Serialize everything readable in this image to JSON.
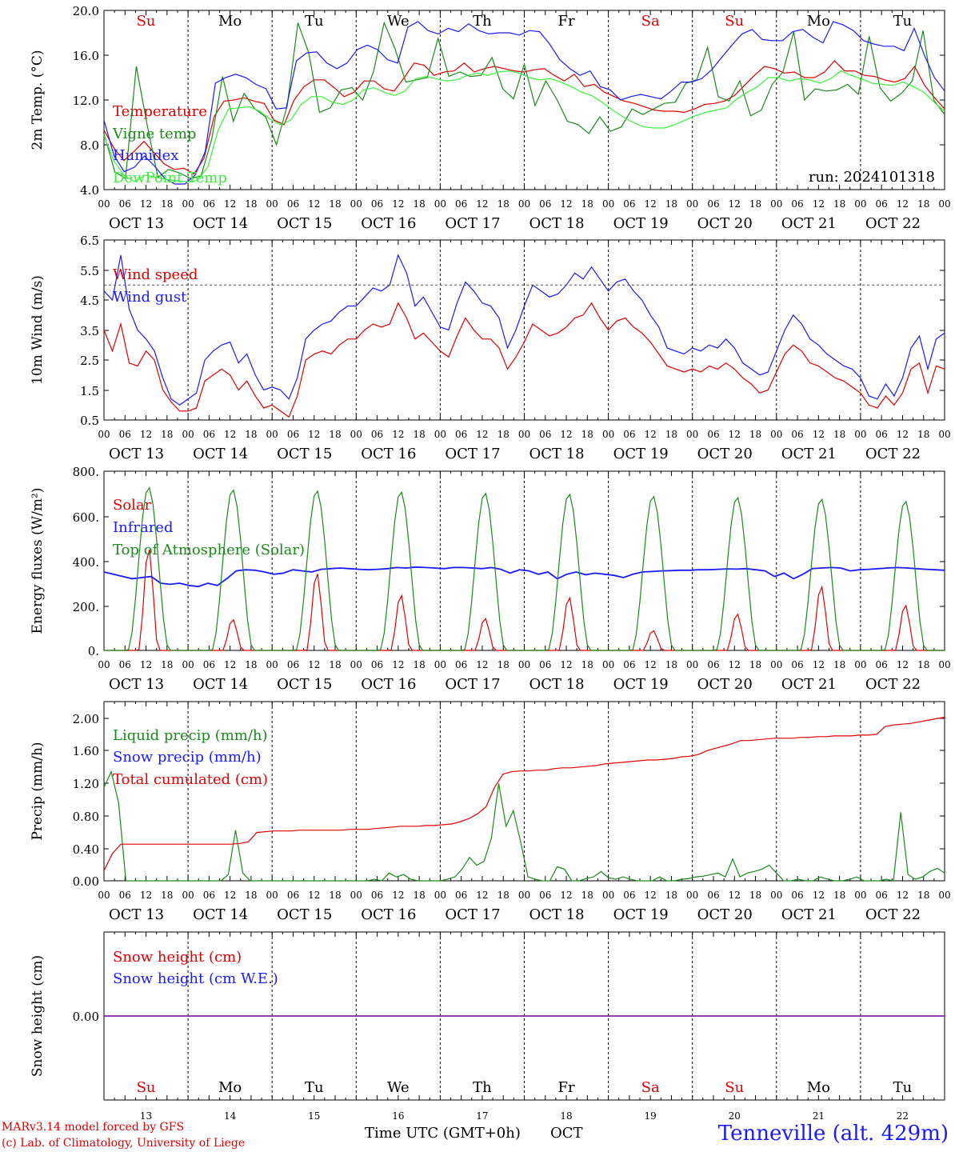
{
  "chart_data": [
    {
      "type": "line",
      "ylabel": "2m Temp. (°C)",
      "ylim": [
        4.0,
        20.0
      ],
      "yticks": [
        "20.0",
        "16.0",
        "12.0",
        "8.0",
        "4.0"
      ],
      "annotation": "run: 2024101318",
      "weekdays": [
        "Su",
        "Mo",
        "Tu",
        "We",
        "Th",
        "Fr",
        "Sa",
        "Su",
        "Mo",
        "Tu"
      ],
      "series": [
        {
          "name": "Temperature",
          "color": "#e00000",
          "values": [
            9.3,
            7.7,
            6.6,
            7.4,
            8.3,
            7.3,
            6.3,
            5.8,
            5.9,
            5.4,
            6.8,
            10.5,
            11.9,
            12.0,
            12.2,
            11.9,
            11.7,
            10.2,
            9.8,
            12.0,
            13.2,
            13.8,
            13.8,
            13.1,
            12.3,
            12.7,
            13.7,
            13.7,
            13.0,
            12.8,
            14.0,
            15.3,
            15.1,
            14.2,
            14.5,
            14.6,
            15.3,
            14.5,
            14.8,
            15.0,
            14.8,
            14.6,
            14.5,
            14.7,
            14.8,
            14.2,
            13.7,
            14.3,
            13.2,
            13.4,
            12.7,
            12.3,
            11.9,
            11.7,
            11.4,
            11.1,
            11.0,
            11.0,
            10.9,
            11.2,
            11.6,
            11.7,
            11.9,
            12.4,
            13.3,
            14.2,
            15.0,
            14.8,
            14.4,
            14.5,
            14.0,
            14.0,
            14.5,
            15.5,
            14.6,
            14.6,
            14.2,
            14.1,
            13.8,
            13.6,
            13.9,
            15.0,
            13.3,
            12.2,
            11.2
          ]
        },
        {
          "name": "Vigne temp",
          "color": "#1a8a1a",
          "values": [
            9.0,
            5.6,
            5.0,
            15.0,
            9.8,
            5.1,
            5.8,
            5.5,
            5.0,
            5.2,
            8.5,
            14.1,
            10.1,
            12.6,
            11.2,
            10.5,
            8.0,
            11.5,
            18.9,
            16.2,
            10.9,
            11.3,
            12.9,
            13.1,
            12.0,
            14.5,
            18.9,
            16.6,
            13.6,
            13.8,
            14.0,
            17.5,
            14.1,
            14.5,
            14.1,
            14.2,
            15.8,
            13.0,
            12.1,
            15.2,
            11.5,
            13.7,
            12.1,
            10.1,
            9.8,
            9.0,
            10.5,
            9.2,
            9.6,
            11.2,
            10.7,
            11.2,
            11.7,
            11.8,
            13.5,
            13.8,
            16.7,
            12.3,
            11.9,
            13.7,
            10.6,
            11.1,
            13.4,
            14.5,
            18.1,
            12.0,
            13.0,
            12.8,
            12.9,
            13.4,
            12.5,
            17.7,
            13.1,
            11.9,
            12.6,
            13.7,
            18.2,
            12.0,
            10.7
          ]
        },
        {
          "name": "Humidex",
          "color": "#1a1aff",
          "values": [
            10.2,
            7.0,
            5.6,
            6.0,
            7.0,
            6.1,
            5.0,
            4.5,
            4.5,
            5.3,
            7.4,
            13.5,
            14.0,
            14.3,
            14.0,
            13.4,
            13.0,
            11.2,
            11.3,
            15.5,
            16.2,
            16.3,
            15.3,
            14.8,
            15.3,
            16.5,
            16.9,
            16.5,
            15.6,
            15.3,
            18.5,
            19.0,
            18.2,
            17.9,
            18.4,
            18.1,
            18.8,
            18.2,
            17.9,
            18.0,
            18.0,
            17.8,
            18.2,
            18.1,
            17.0,
            15.6,
            14.8,
            14.2,
            14.6,
            13.2,
            12.9,
            12.0,
            12.3,
            12.5,
            12.3,
            12.1,
            12.8,
            13.6,
            13.6,
            13.9,
            14.7,
            15.8,
            16.9,
            17.9,
            18.3,
            17.4,
            17.3,
            17.3,
            18.1,
            18.3,
            17.6,
            17.1,
            19.0,
            18.7,
            18.2,
            17.3,
            17.0,
            16.8,
            16.8,
            16.4,
            18.4,
            16.0,
            14.0,
            12.8
          ]
        },
        {
          "name": "DewPoint Temp",
          "color": "#3cf03c",
          "values": [
            8.8,
            6.5,
            5.2,
            4.7,
            5.3,
            5.1,
            4.9,
            4.8,
            4.7,
            4.8,
            6.0,
            9.3,
            11.2,
            11.3,
            11.4,
            11.0,
            10.3,
            9.8,
            10.2,
            11.6,
            12.3,
            12.3,
            11.8,
            11.6,
            12.0,
            12.9,
            13.1,
            12.7,
            12.4,
            12.8,
            13.9,
            14.1,
            13.9,
            13.7,
            13.8,
            14.2,
            14.4,
            14.2,
            14.5,
            14.6,
            14.4,
            14.0,
            13.8,
            13.9,
            13.6,
            13.2,
            12.7,
            12.4,
            11.8,
            11.1,
            10.5,
            10.0,
            9.6,
            9.5,
            9.5,
            9.8,
            10.2,
            10.6,
            10.9,
            11.1,
            11.3,
            12.1,
            12.7,
            13.2,
            14.0,
            14.0,
            13.7,
            13.9,
            13.8,
            13.5,
            13.9,
            14.6,
            14.2,
            13.9,
            13.5,
            13.4,
            13.3,
            13.6,
            13.2,
            12.7,
            11.8,
            11.0
          ]
        }
      ]
    },
    {
      "type": "line",
      "ylabel": "10m Wind (m/s)",
      "ylim": [
        0.5,
        6.5
      ],
      "yticks": [
        "6.5",
        "5.5",
        "4.5",
        "3.5",
        "2.5",
        "1.5",
        "0.5"
      ],
      "series": [
        {
          "name": "Wind speed",
          "color": "#e00000",
          "values": [
            3.5,
            2.8,
            3.7,
            2.4,
            2.3,
            2.8,
            2.5,
            1.5,
            1.1,
            0.8,
            0.8,
            0.9,
            1.8,
            2.0,
            2.2,
            2.0,
            1.5,
            1.8,
            1.3,
            0.9,
            1.0,
            0.8,
            0.6,
            1.3,
            2.5,
            2.7,
            2.8,
            2.7,
            3.0,
            3.2,
            3.2,
            3.5,
            3.7,
            3.6,
            3.7,
            4.4,
            3.9,
            3.2,
            3.4,
            3.1,
            2.8,
            2.6,
            3.3,
            3.9,
            3.5,
            3.2,
            3.2,
            2.9,
            2.2,
            2.6,
            3.1,
            3.7,
            3.5,
            3.3,
            3.4,
            3.6,
            3.9,
            4.0,
            4.4,
            3.9,
            3.5,
            3.8,
            3.9,
            3.6,
            3.4,
            3.1,
            2.7,
            2.3,
            2.2,
            2.1,
            2.2,
            2.1,
            2.3,
            2.2,
            2.4,
            2.2,
            1.9,
            1.7,
            1.4,
            1.5,
            2.1,
            2.7,
            3.0,
            2.8,
            2.4,
            2.3,
            2.1,
            1.9,
            1.8,
            1.6,
            1.4,
            1.0,
            0.9,
            1.3,
            1.0,
            1.4,
            2.2,
            2.4,
            1.4,
            2.3,
            2.2
          ]
        },
        {
          "name": "Wind gust",
          "color": "#1a1aff",
          "values": [
            4.8,
            4.5,
            6.0,
            4.2,
            3.5,
            3.2,
            2.8,
            1.9,
            1.2,
            1.0,
            1.2,
            1.4,
            2.5,
            2.8,
            3.0,
            3.1,
            2.4,
            2.7,
            2.0,
            1.5,
            1.6,
            1.5,
            1.2,
            1.9,
            3.2,
            3.5,
            3.7,
            3.8,
            4.1,
            4.3,
            4.3,
            4.6,
            4.9,
            4.8,
            5.0,
            6.0,
            5.4,
            4.3,
            4.6,
            4.1,
            3.6,
            3.5,
            4.4,
            5.1,
            4.8,
            4.4,
            4.3,
            3.9,
            2.9,
            3.5,
            4.3,
            5.0,
            4.8,
            4.6,
            4.7,
            5.0,
            5.4,
            5.2,
            5.6,
            5.2,
            4.8,
            5.1,
            5.2,
            4.8,
            4.5,
            4.0,
            3.6,
            2.9,
            2.8,
            2.7,
            2.9,
            2.8,
            3.0,
            2.9,
            3.2,
            2.9,
            2.4,
            2.2,
            2.0,
            2.1,
            2.8,
            3.5,
            4.0,
            3.7,
            3.2,
            3.0,
            2.7,
            2.5,
            2.3,
            2.2,
            1.9,
            1.3,
            1.2,
            1.7,
            1.3,
            1.9,
            2.9,
            3.3,
            2.2,
            3.2,
            3.4
          ]
        }
      ],
      "reference_line": 5.0
    },
    {
      "type": "line",
      "ylabel": "Energy fluxes (W/m²)",
      "ylim": [
        0,
        800
      ],
      "yticks": [
        "800.",
        "600.",
        "400.",
        "200.",
        "0."
      ],
      "series": [
        {
          "name": "Solar",
          "color": "#e00000",
          "peaks": [
            460,
            140,
            350,
            250,
            145,
            240,
            90,
            165,
            290,
            205
          ]
        },
        {
          "name": "Infrared",
          "color": "#1a1aff",
          "values": [
            350,
            340,
            330,
            320,
            325,
            330,
            300,
            295,
            300,
            290,
            285,
            300,
            290,
            320,
            355,
            360,
            358,
            350,
            340,
            345,
            360,
            355,
            350,
            362,
            365,
            368,
            365,
            362,
            360,
            362,
            365,
            370,
            368,
            372,
            370,
            368,
            365,
            370,
            370,
            368,
            365,
            370,
            362,
            345,
            360,
            355,
            340,
            350,
            320,
            340,
            350,
            338,
            345,
            340,
            335,
            325,
            340,
            350,
            352,
            355,
            356,
            358,
            358,
            360,
            360,
            362,
            364,
            363,
            365,
            360,
            355,
            330,
            345,
            320,
            340,
            365,
            368,
            370,
            368,
            355,
            360,
            362,
            365,
            368,
            370,
            368,
            365,
            362,
            360,
            358
          ]
        },
        {
          "name": "Top of Atmosphere (Solar)",
          "color": "#1a8a1a",
          "peaks": [
            730,
            720,
            715,
            710,
            705,
            700,
            690,
            685,
            678,
            668
          ]
        }
      ]
    },
    {
      "type": "line",
      "ylabel": "Precip (mm/h)",
      "ylim": [
        0.0,
        2.3
      ],
      "yticks": [
        "2.00",
        "1.60",
        "1.20",
        "0.80",
        "0.40",
        "0.00"
      ],
      "series": [
        {
          "name": "Liquid precip (mm/h)",
          "color": "#1a8a1a",
          "values": [
            1.2,
            1.4,
            1.0,
            0.0,
            0.0,
            0.0,
            0.0,
            0.0,
            0.0,
            0.0,
            0.0,
            0.0,
            0.0,
            0.0,
            0.0,
            0.0,
            0.0,
            0.08,
            0.65,
            0.1,
            0.0,
            0.0,
            0.0,
            0.0,
            0.0,
            0.0,
            0.0,
            0.0,
            0.0,
            0.0,
            0.0,
            0.0,
            0.0,
            0.0,
            0.0,
            0.0,
            0.0,
            0.02,
            0.0,
            0.1,
            0.05,
            0.08,
            0.02,
            0.0,
            0.0,
            0.0,
            0.0,
            0.02,
            0.05,
            0.15,
            0.3,
            0.2,
            0.25,
            0.55,
            1.25,
            0.7,
            0.9,
            0.5,
            0.05,
            0.02,
            0.0,
            0.0,
            0.18,
            0.15,
            0.0,
            0.0,
            0.03,
            0.05,
            0.12,
            0.04,
            0.02,
            0.05,
            0.02,
            0.0,
            0.0,
            0.0,
            0.05,
            0.0,
            0.0,
            0.02,
            0.03,
            0.05,
            0.06,
            0.08,
            0.1,
            0.05,
            0.28,
            0.05,
            0.1,
            0.12,
            0.15,
            0.2,
            0.1,
            0.0,
            0.0,
            0.02,
            0.0,
            0.0,
            0.05,
            0.02,
            0.0,
            0.0,
            0.02,
            0.05,
            0.0,
            0.0,
            0.0,
            0.02,
            0.0,
            0.88,
            0.08,
            0.02,
            0.05,
            0.12,
            0.16,
            0.1
          ]
        },
        {
          "name": "Snow precip (mm/h)",
          "color": "#1a1aff",
          "values": []
        },
        {
          "name": "Total cumulated (cm)",
          "color": "#e00000",
          "values": [
            0.13,
            0.35,
            0.47,
            0.47,
            0.47,
            0.47,
            0.47,
            0.47,
            0.47,
            0.47,
            0.47,
            0.47,
            0.47,
            0.47,
            0.47,
            0.47,
            0.48,
            0.5,
            0.62,
            0.63,
            0.64,
            0.64,
            0.64,
            0.65,
            0.65,
            0.65,
            0.65,
            0.65,
            0.65,
            0.66,
            0.66,
            0.66,
            0.67,
            0.68,
            0.69,
            0.7,
            0.7,
            0.7,
            0.71,
            0.71,
            0.72,
            0.73,
            0.76,
            0.8,
            0.86,
            0.95,
            1.2,
            1.37,
            1.4,
            1.41,
            1.41,
            1.42,
            1.42,
            1.44,
            1.45,
            1.45,
            1.46,
            1.47,
            1.48,
            1.5,
            1.51,
            1.52,
            1.53,
            1.54,
            1.55,
            1.55,
            1.56,
            1.57,
            1.59,
            1.6,
            1.62,
            1.67,
            1.7,
            1.73,
            1.76,
            1.8,
            1.8,
            1.81,
            1.82,
            1.83,
            1.83,
            1.83,
            1.84,
            1.84,
            1.85,
            1.85,
            1.86,
            1.86,
            1.86,
            1.87,
            1.87,
            1.88,
            1.98,
            2.0,
            2.01,
            2.02,
            2.04,
            2.06,
            2.08,
            2.1
          ]
        }
      ]
    },
    {
      "type": "line",
      "ylabel": "Snow height (cm)",
      "ylim": [
        -1,
        1
      ],
      "yticks": [
        "0.00"
      ],
      "series": [
        {
          "name": "Snow height (cm)",
          "color": "#e00000",
          "values": [
            0,
            0
          ]
        },
        {
          "name": "Snow height (cm W.E.)",
          "color": "#1a1aff",
          "values": [
            0,
            0
          ]
        }
      ]
    }
  ],
  "x_axis": {
    "hour_ticks": [
      "00",
      "06",
      "12",
      "18"
    ],
    "final_tick": "00",
    "dates": [
      "OCT 13",
      "OCT 14",
      "OCT 15",
      "OCT 16",
      "OCT 17",
      "OCT 18",
      "OCT 19",
      "OCT 20",
      "OCT 21",
      "OCT 22"
    ],
    "day_numbers": [
      "13",
      "14",
      "15",
      "16",
      "17",
      "18",
      "19",
      "20",
      "21",
      "22"
    ],
    "weekdays": [
      "Su",
      "Mo",
      "Tu",
      "We",
      "Th",
      "Fr",
      "Sa",
      "Su",
      "Mo",
      "Tu"
    ],
    "weekend_color": "#e00000",
    "weekday_color": "#000000",
    "title": "Time UTC (GMT+0h)",
    "month": "OCT"
  },
  "footer": {
    "credit_line1": "MARv3.14 model forced by GFS",
    "credit_line2": "(c) Lab. of Climatology, University of Liege",
    "station": "Tenneville (alt. 429m)"
  }
}
